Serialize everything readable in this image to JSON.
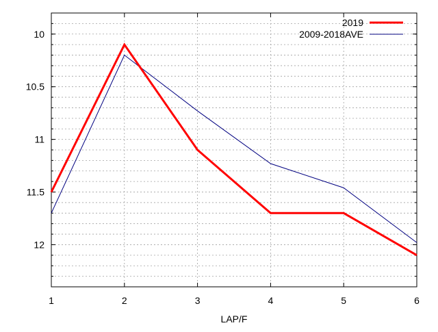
{
  "chart_data": {
    "type": "line",
    "title": "",
    "xlabel": "LAP/F",
    "ylabel": "",
    "x": [
      1,
      2,
      3,
      4,
      5,
      6
    ],
    "xlim": [
      1,
      6
    ],
    "ylim": [
      12.4,
      9.8
    ],
    "y_inverted": true,
    "x_ticks": [
      "1",
      "2",
      "3",
      "4",
      "5",
      "6"
    ],
    "y_ticks": [
      {
        "value": 10,
        "label": "10"
      },
      {
        "value": 10.5,
        "label": "10.5"
      },
      {
        "value": 11,
        "label": "11"
      },
      {
        "value": 11.5,
        "label": "11.5"
      },
      {
        "value": 12,
        "label": "12"
      }
    ],
    "y_minor_step": 0.1,
    "grid": true,
    "legend_position": "top-right",
    "series": [
      {
        "name": "2019",
        "color": "#ff0000",
        "values": [
          11.5,
          10.1,
          11.1,
          11.7,
          11.7,
          12.1
        ]
      },
      {
        "name": "2009-2018AVE",
        "color": "#000080",
        "values": [
          11.7,
          10.2,
          10.73,
          11.23,
          11.46,
          11.98
        ]
      }
    ]
  }
}
